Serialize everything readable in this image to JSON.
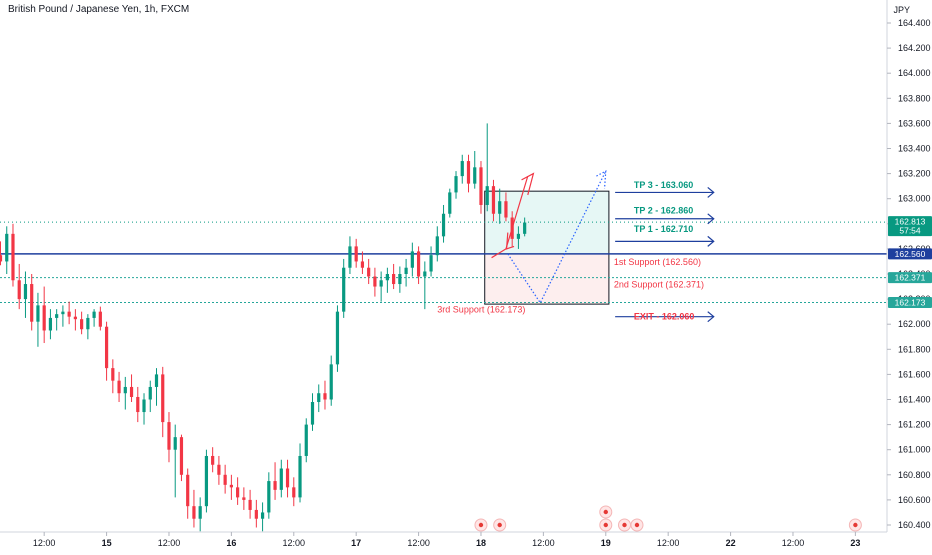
{
  "header": {
    "symbol_title": "British Pound / Japanese Yen, 1h, FXCM",
    "currency": "JPY"
  },
  "colors": {
    "up": "#089981",
    "down": "#f23645",
    "blue_line": "#1e3f9e",
    "teal_dotted": "#26a69a",
    "box_green_fill": "#e6f7f5",
    "box_red_fill": "#fdeeee"
  },
  "chart_data": {
    "type": "candlestick",
    "title": "British Pound / Japanese Yen, 1h, FXCM",
    "ylim": [
      160.3,
      164.52
    ],
    "y_ticks": [
      "164.400",
      "164.200",
      "164.000",
      "163.800",
      "163.600",
      "163.400",
      "163.200",
      "163.000",
      "162.800",
      "162.600",
      "162.400",
      "162.200",
      "162.000",
      "161.800",
      "161.600",
      "161.400",
      "161.200",
      "161.000",
      "160.800",
      "160.600",
      "160.400"
    ],
    "x_ticks": [
      {
        "label": "12:00",
        "bar": 7
      },
      {
        "label": "15",
        "bar": 17
      },
      {
        "label": "12:00",
        "bar": 27
      },
      {
        "label": "16",
        "bar": 37
      },
      {
        "label": "12:00",
        "bar": 47
      },
      {
        "label": "17",
        "bar": 57
      },
      {
        "label": "12:00",
        "bar": 67
      },
      {
        "label": "18",
        "bar": 77
      },
      {
        "label": "12:00",
        "bar": 87
      },
      {
        "label": "19",
        "bar": 97
      },
      {
        "label": "12:00",
        "bar": 107
      },
      {
        "label": "22",
        "bar": 117
      },
      {
        "label": "12:00",
        "bar": 127
      },
      {
        "label": "23",
        "bar": 137
      }
    ],
    "candles": [
      [
        162.55,
        162.66,
        162.47,
        162.5
      ],
      [
        162.5,
        162.78,
        162.4,
        162.72
      ],
      [
        162.72,
        162.8,
        162.3,
        162.35
      ],
      [
        162.35,
        162.48,
        162.12,
        162.2
      ],
      [
        162.2,
        162.42,
        162.05,
        162.32
      ],
      [
        162.32,
        162.4,
        161.95,
        162.02
      ],
      [
        162.02,
        162.25,
        161.82,
        162.15
      ],
      [
        162.15,
        162.3,
        161.85,
        161.95
      ],
      [
        161.95,
        162.12,
        161.88,
        162.05
      ],
      [
        162.05,
        162.12,
        161.95,
        162.08
      ],
      [
        162.08,
        162.15,
        161.98,
        162.1
      ],
      [
        162.1,
        162.18,
        162.0,
        162.06
      ],
      [
        162.06,
        162.12,
        161.95,
        162.04
      ],
      [
        162.04,
        162.1,
        161.92,
        161.96
      ],
      [
        161.96,
        162.08,
        161.88,
        162.05
      ],
      [
        162.05,
        162.12,
        161.98,
        162.1
      ],
      [
        162.1,
        162.14,
        161.95,
        161.98
      ],
      [
        161.98,
        162.02,
        161.55,
        161.65
      ],
      [
        161.65,
        161.72,
        161.45,
        161.55
      ],
      [
        161.55,
        161.62,
        161.38,
        161.45
      ],
      [
        161.45,
        161.58,
        161.32,
        161.5
      ],
      [
        161.5,
        161.6,
        161.38,
        161.42
      ],
      [
        161.42,
        161.5,
        161.22,
        161.3
      ],
      [
        161.3,
        161.45,
        161.2,
        161.4
      ],
      [
        161.4,
        161.55,
        161.3,
        161.5
      ],
      [
        161.5,
        161.65,
        161.35,
        161.6
      ],
      [
        161.6,
        161.66,
        161.1,
        161.22
      ],
      [
        161.22,
        161.3,
        160.9,
        161.0
      ],
      [
        161.0,
        161.2,
        160.62,
        161.1
      ],
      [
        161.1,
        161.12,
        160.75,
        160.8
      ],
      [
        160.8,
        160.85,
        160.45,
        160.55
      ],
      [
        160.55,
        160.68,
        160.38,
        160.45
      ],
      [
        160.45,
        160.62,
        160.35,
        160.55
      ],
      [
        160.55,
        161.0,
        160.5,
        160.95
      ],
      [
        160.95,
        161.02,
        160.82,
        160.88
      ],
      [
        160.88,
        160.95,
        160.72,
        160.8
      ],
      [
        160.8,
        160.88,
        160.65,
        160.72
      ],
      [
        160.72,
        160.8,
        160.6,
        160.7
      ],
      [
        160.7,
        160.78,
        160.56,
        160.62
      ],
      [
        160.62,
        160.7,
        160.52,
        160.6
      ],
      [
        160.6,
        160.68,
        160.45,
        160.52
      ],
      [
        160.52,
        160.6,
        160.38,
        160.45
      ],
      [
        160.45,
        160.58,
        160.35,
        160.5
      ],
      [
        160.5,
        160.82,
        160.45,
        160.75
      ],
      [
        160.75,
        160.9,
        160.6,
        160.68
      ],
      [
        160.68,
        160.92,
        160.62,
        160.85
      ],
      [
        160.85,
        160.92,
        160.62,
        160.7
      ],
      [
        160.7,
        160.78,
        160.55,
        160.62
      ],
      [
        160.62,
        161.05,
        160.58,
        160.95
      ],
      [
        160.95,
        161.25,
        160.9,
        161.2
      ],
      [
        161.2,
        161.45,
        161.15,
        161.38
      ],
      [
        161.38,
        161.52,
        161.3,
        161.45
      ],
      [
        161.45,
        161.55,
        161.32,
        161.4
      ],
      [
        161.4,
        161.75,
        161.35,
        161.68
      ],
      [
        161.68,
        162.15,
        161.62,
        162.1
      ],
      [
        162.1,
        162.52,
        162.05,
        162.45
      ],
      [
        162.45,
        162.7,
        162.4,
        162.62
      ],
      [
        162.62,
        162.68,
        162.45,
        162.5
      ],
      [
        162.5,
        162.58,
        162.4,
        162.45
      ],
      [
        162.45,
        162.52,
        162.32,
        162.38
      ],
      [
        162.38,
        162.45,
        162.22,
        162.3
      ],
      [
        162.3,
        162.42,
        162.18,
        162.35
      ],
      [
        162.35,
        162.45,
        162.25,
        162.4
      ],
      [
        162.4,
        162.48,
        162.28,
        162.32
      ],
      [
        162.32,
        162.46,
        162.25,
        162.4
      ],
      [
        162.4,
        162.52,
        162.3,
        162.45
      ],
      [
        162.45,
        162.65,
        162.38,
        162.58
      ],
      [
        162.58,
        162.62,
        162.32,
        162.38
      ],
      [
        162.38,
        162.5,
        162.12,
        162.42
      ],
      [
        162.42,
        162.62,
        162.38,
        162.55
      ],
      [
        162.55,
        162.78,
        162.5,
        162.7
      ],
      [
        162.7,
        162.95,
        162.65,
        162.88
      ],
      [
        162.88,
        163.08,
        162.85,
        163.05
      ],
      [
        163.05,
        163.22,
        163.0,
        163.18
      ],
      [
        163.18,
        163.35,
        163.12,
        163.3
      ],
      [
        163.3,
        163.35,
        163.05,
        163.12
      ],
      [
        163.12,
        163.38,
        163.08,
        163.25
      ],
      [
        163.25,
        163.3,
        162.88,
        162.95
      ],
      [
        162.95,
        163.6,
        162.9,
        163.1
      ],
      [
        163.1,
        163.15,
        162.82,
        162.88
      ],
      [
        162.88,
        163.08,
        162.8,
        162.98
      ],
      [
        162.98,
        163.05,
        162.82,
        162.85
      ],
      [
        162.85,
        162.9,
        162.62,
        162.68
      ],
      [
        162.68,
        162.78,
        162.6,
        162.72
      ],
      [
        162.72,
        162.85,
        162.7,
        162.81
      ]
    ],
    "levels": [
      {
        "name": "current",
        "value": 162.813
      },
      {
        "name": "blue",
        "value": 162.56
      },
      {
        "name": "second",
        "value": 162.371
      },
      {
        "name": "third",
        "value": 162.173
      }
    ],
    "price_badges": [
      {
        "price": 162.813,
        "text": "162.813",
        "countdown": "57:54",
        "color": "#089981"
      },
      {
        "price": 162.56,
        "text": "162.560",
        "color": "#1e3f9e"
      },
      {
        "price": 162.371,
        "text": "162.371",
        "color": "#26a69a"
      },
      {
        "price": 162.173,
        "text": "162.173",
        "color": "#26a69a"
      }
    ],
    "annotations": {
      "tp3": "TP 3 - 163.060",
      "tp2": "TP 2 - 162.860",
      "tp1": "TP 1 - 162.710",
      "support1": "1st Support (162.560)",
      "support2": "2nd Support (162.371)",
      "support3": "3rd Support (162.173)",
      "exit": "EXIT - 162.060"
    },
    "events": [
      {
        "bar": 77,
        "kind": "single"
      },
      {
        "bar": 80,
        "kind": "single"
      },
      {
        "bar": 97,
        "kind": "stack"
      },
      {
        "bar": 100,
        "kind": "single"
      },
      {
        "bar": 102,
        "kind": "single"
      },
      {
        "bar": 137,
        "kind": "single"
      }
    ]
  }
}
